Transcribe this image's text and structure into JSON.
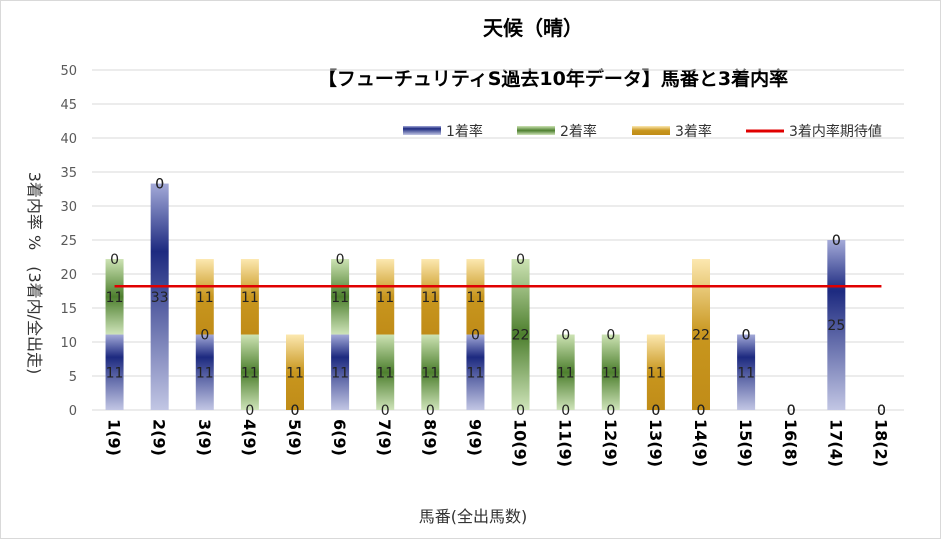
{
  "chart_data": {
    "type": "bar",
    "stacked": true,
    "title": "天候（晴）",
    "subtitle": "【フューチュリティS過去10年データ】馬番と3着内率",
    "xlabel": "馬番(全出馬数)",
    "ylabel": "3着内率 %　(3着内/全出走)",
    "ylim": [
      0,
      50
    ],
    "ytick_step": 5,
    "legend_position": "top-right",
    "categories": [
      "1(9)",
      "2(9)",
      "3(9)",
      "4(9)",
      "5(9)",
      "6(9)",
      "7(9)",
      "8(9)",
      "9(9)",
      "10(9)",
      "11(9)",
      "12(9)",
      "13(9)",
      "14(9)",
      "15(9)",
      "16(8)",
      "17(4)",
      "18(2)"
    ],
    "series": [
      {
        "name": "1着率",
        "values": [
          11.1,
          33.3,
          11.1,
          0,
          0,
          11.1,
          0,
          0,
          11.1,
          0,
          0,
          0,
          0,
          0,
          11.1,
          0,
          25,
          0
        ],
        "labels": [
          "11",
          "33",
          "11",
          "0",
          "0",
          "11",
          "0",
          "0",
          "11",
          "0",
          "0",
          "0",
          "0",
          "0",
          "11",
          "0",
          "25",
          "0"
        ],
        "color": "#3d4a9e"
      },
      {
        "name": "2着率",
        "values": [
          11.1,
          0,
          0,
          11.1,
          0,
          11.1,
          11.1,
          11.1,
          0,
          22.2,
          11.1,
          11.1,
          0,
          0,
          0,
          0,
          0,
          0
        ],
        "labels": [
          "11",
          "0",
          "0",
          "11",
          "0",
          "11",
          "11",
          "11",
          "0",
          "22",
          "11",
          "11",
          "0",
          "0",
          "0",
          "0",
          "0",
          "0"
        ],
        "color": "#5b8c3a"
      },
      {
        "name": "3着率",
        "values": [
          0,
          0,
          11.1,
          11.1,
          11.1,
          0,
          11.1,
          11.1,
          11.1,
          0,
          0,
          0,
          11.1,
          22.2,
          0,
          0,
          0,
          0
        ],
        "labels": [
          "0",
          "0",
          "11",
          "11",
          "11",
          "0",
          "11",
          "11",
          "11",
          "0",
          "0",
          "0",
          "11",
          "22",
          "0",
          "0",
          "0",
          "0"
        ],
        "color": "#c8961e"
      }
    ],
    "reference_line": {
      "name": "3着内率期待値",
      "value": 18.2,
      "color": "#e00000"
    }
  }
}
